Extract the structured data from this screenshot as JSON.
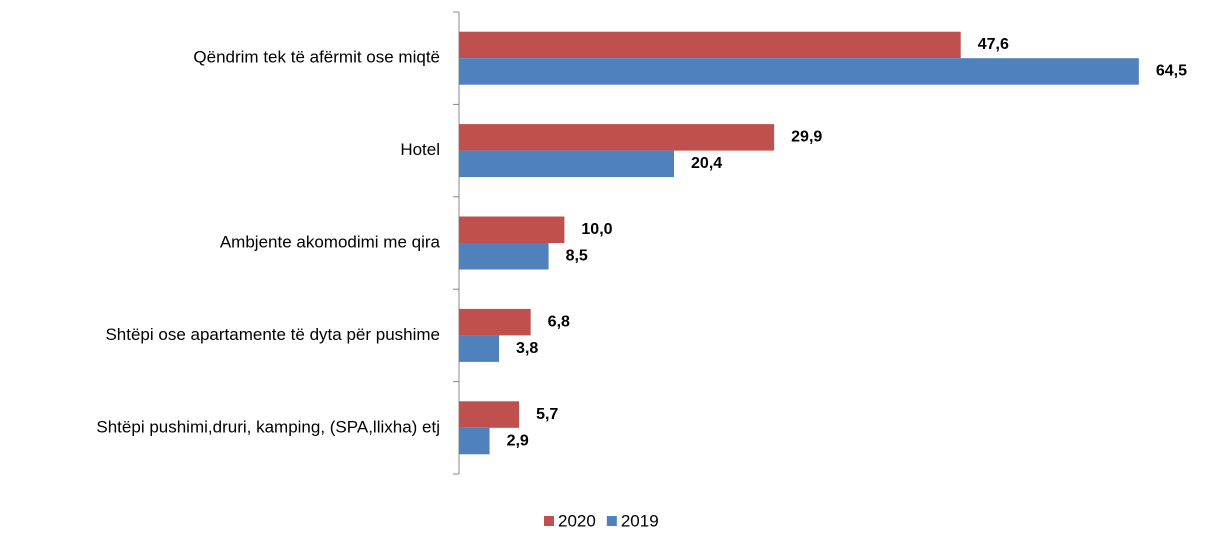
{
  "chart_data": {
    "type": "hbar",
    "categories": [
      "Qëndrim tek të afërmit ose miqtë",
      "Hotel",
      "Ambjente akomodimi me qira",
      "Shtëpi ose apartamente të dyta për pushime",
      "Shtëpi pushimi,druri, kamping, (SPA,llixha) etj"
    ],
    "series": [
      {
        "name": "2020",
        "color": "#c0504d",
        "values": [
          47.6,
          29.9,
          10.0,
          6.8,
          5.7
        ],
        "value_labels": [
          "47,6",
          "29,9",
          "10,0",
          "6,8",
          "5,7"
        ]
      },
      {
        "name": "2019",
        "color": "#4f81bd",
        "values": [
          64.5,
          20.4,
          8.5,
          3.8,
          2.9
        ],
        "value_labels": [
          "64,5",
          "20,4",
          "8,5",
          "3,8",
          "2,9"
        ]
      }
    ],
    "legend": "bottom"
  }
}
